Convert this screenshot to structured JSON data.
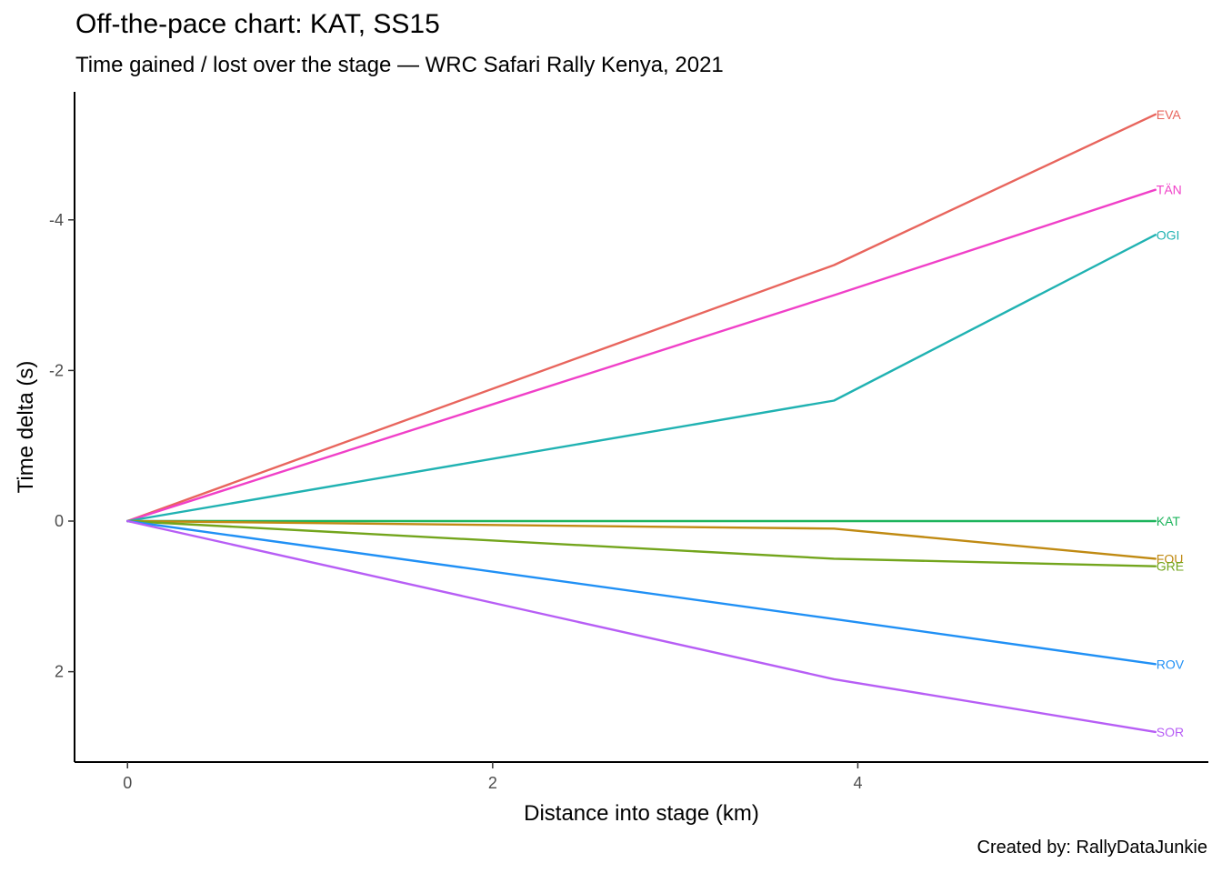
{
  "header": {
    "title": "Off-the-pace chart: KAT, SS15",
    "subtitle": "Time gained / lost over the stage — WRC Safari Rally Kenya, 2021",
    "caption": "Created by: RallyDataJunkie"
  },
  "chart_data": {
    "type": "line",
    "title": "Off-the-pace chart: KAT, SS15",
    "subtitle": "Time gained / lost over the stage — WRC Safari Rally Kenya, 2021",
    "xlabel": "Distance into stage (km)",
    "ylabel": "Time delta (s)",
    "xlim": [
      -0.29,
      5.92
    ],
    "ylim": [
      3.2,
      -5.7
    ],
    "y_reversed": true,
    "x_ticks": [
      0,
      2,
      4
    ],
    "y_ticks": [
      -4,
      -2,
      0,
      2
    ],
    "y_tick_labels": [
      "-4",
      "-2",
      "0",
      "2"
    ],
    "grid": false,
    "legend": "none (direct labels at line ends)",
    "x": [
      0,
      3.87,
      5.63
    ],
    "series": [
      {
        "name": "EVA",
        "color": "#e8655d",
        "values": [
          0,
          -3.4,
          -5.4
        ]
      },
      {
        "name": "TÄN",
        "color": "#f040c8",
        "values": [
          0,
          -3.0,
          -4.4
        ]
      },
      {
        "name": "OGI",
        "color": "#20b2b2",
        "values": [
          0,
          -1.6,
          -3.8
        ]
      },
      {
        "name": "KAT",
        "color": "#1db45c",
        "values": [
          0,
          0.0,
          0.0
        ]
      },
      {
        "name": "FOU",
        "color": "#c08a12",
        "values": [
          0,
          0.1,
          0.5
        ]
      },
      {
        "name": "GRE",
        "color": "#73a51c",
        "values": [
          0,
          0.5,
          0.6
        ]
      },
      {
        "name": "ROV",
        "color": "#2090f5",
        "values": [
          0,
          1.3,
          1.9
        ]
      },
      {
        "name": "SOR",
        "color": "#b75ef5",
        "values": [
          0,
          2.1,
          2.8
        ]
      }
    ]
  }
}
